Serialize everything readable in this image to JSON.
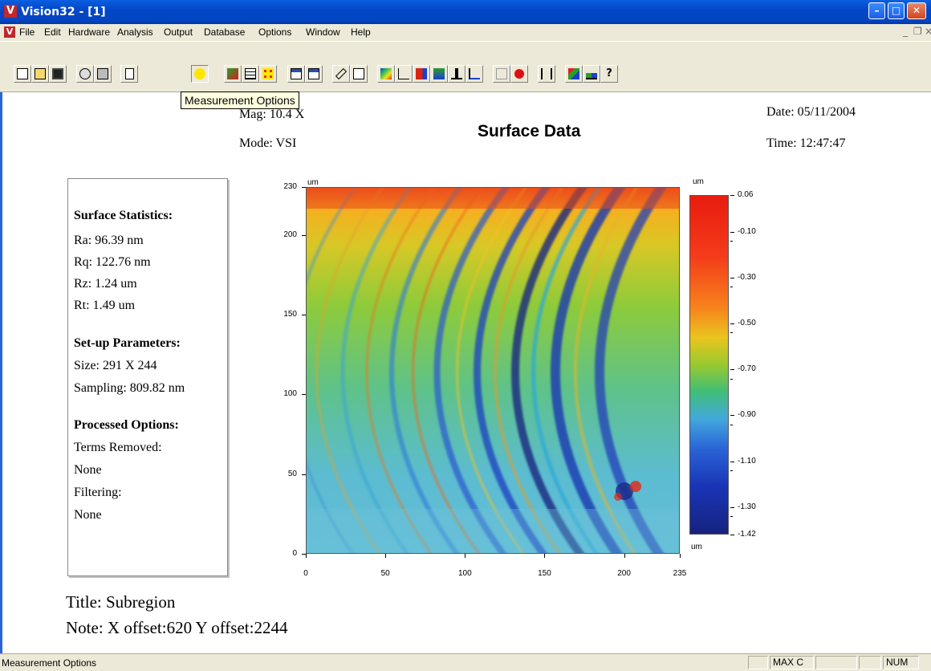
{
  "window": {
    "title": "Vision32 - [1]",
    "app_icon": "V"
  },
  "menu": [
    "File",
    "Edit",
    "Hardware",
    "Analysis",
    "Output",
    "Database",
    "Options",
    "Window",
    "Help"
  ],
  "toolbar": {
    "tooltip": "Measurement Options",
    "buttons": [
      "new-icon",
      "open-icon",
      "save-icon",
      "print-preview-icon",
      "print-icon",
      "blank-page-icon",
      "measurement-options-icon",
      "stitch-icon",
      "dataset-icon",
      "dots-icon",
      "table-icon",
      "table2-icon",
      "ruler-icon",
      "copy-icon",
      "contour-plot-icon",
      "profile-plot-icon",
      "3d-plot-icon",
      "analysis-icon",
      "histogram-icon",
      "profile-icon",
      "mask-icon",
      "record-icon",
      "split-icon",
      "cursor-icon",
      "bearing-ratio-icon",
      "help-icon"
    ]
  },
  "report": {
    "title": "Surface Data",
    "mag": "Mag: 10.4 X",
    "mode": "Mode: VSI",
    "date": "Date: 05/11/2004",
    "time": "Time: 12:47:47",
    "footer_title": "Title: Subregion",
    "footer_note": "Note: X offset:620 Y offset:2244"
  },
  "stats": {
    "surface_heading": "Surface Statistics:",
    "ra": "Ra: 96.39 nm",
    "rq": "Rq: 122.76 nm",
    "rz": "Rz: 1.24 um",
    "rt": "Rt: 1.49 um",
    "setup_heading": "Set-up Parameters:",
    "size": "Size: 291 X 244",
    "sampling": "Sampling: 809.82 nm",
    "processed_heading": "Processed Options:",
    "terms_label": "Terms Removed:",
    "terms_value": "None",
    "filter_label": "Filtering:",
    "filter_value": "None"
  },
  "chart_data": {
    "type": "heatmap",
    "x_unit": "um",
    "y_unit": "um",
    "xlim": [
      0,
      235
    ],
    "ylim": [
      0,
      230
    ],
    "x_ticks": [
      "0",
      "50",
      "100",
      "150",
      "200",
      "235"
    ],
    "y_ticks": [
      "0",
      "50",
      "100",
      "150",
      "200",
      "230"
    ],
    "colorbar": {
      "unit_top": "um",
      "unit_bottom": "um",
      "ticks": [
        "0.06",
        "-0.10",
        "-0.30",
        "-0.50",
        "-0.70",
        "-0.90",
        "-1.10",
        "-1.30",
        "-1.42"
      ],
      "range": [
        -1.42,
        0.06
      ]
    }
  },
  "status": {
    "text": "Measurement Options",
    "pane_max": "MAX C",
    "pane_num": "NUM"
  }
}
